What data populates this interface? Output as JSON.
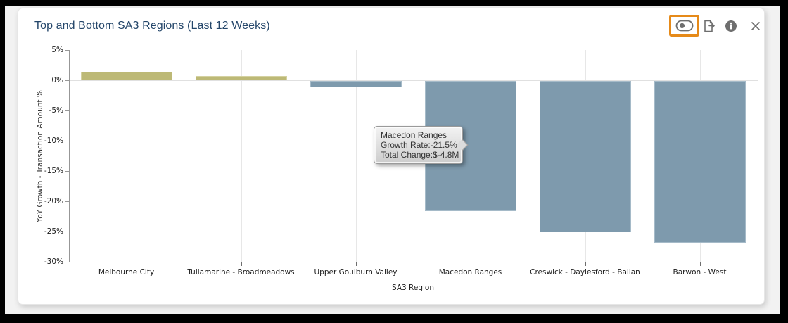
{
  "header": {
    "title": "Top and Bottom SA3 Regions (Last 12 Weeks)",
    "title_color": "#24466a",
    "icons": [
      {
        "name": "toggle-icon",
        "highlighted": true
      },
      {
        "name": "export-icon",
        "highlighted": false
      },
      {
        "name": "info-icon",
        "highlighted": false
      },
      {
        "name": "close-icon",
        "highlighted": false
      }
    ],
    "highlight_color": "#e68a19",
    "icon_color": "#6e6e6e"
  },
  "chart_data": {
    "type": "bar",
    "title": "Top and Bottom SA3 Regions (Last 12 Weeks)",
    "categories": [
      "Melbourne City",
      "Tullamarine - Broadmeadows",
      "Upper Goulburn Valley",
      "Macedon Ranges",
      "Creswick - Daylesford - Ballan",
      "Barwon - West"
    ],
    "values": [
      1.4,
      0.7,
      -1.0,
      -21.5,
      -25.0,
      -26.7
    ],
    "xlabel": "SA3 Region",
    "ylabel": "YoY Growth - Transaction Amount %",
    "ylim": [
      -30,
      5
    ],
    "ytick_step": 5,
    "ytick_labels": [
      "5%",
      "0%",
      "-5%",
      "-10%",
      "-15%",
      "-20%",
      "-25%",
      "-30%"
    ],
    "grid": "vertical category gridlines + zero line",
    "legend": "none",
    "positive_color": "#bdb976",
    "negative_color": "#7e9aad"
  },
  "tooltip": {
    "lines": [
      "Macedon Ranges",
      "Growth Rate:-21.5%",
      "Total Change:$-4.8M"
    ]
  }
}
